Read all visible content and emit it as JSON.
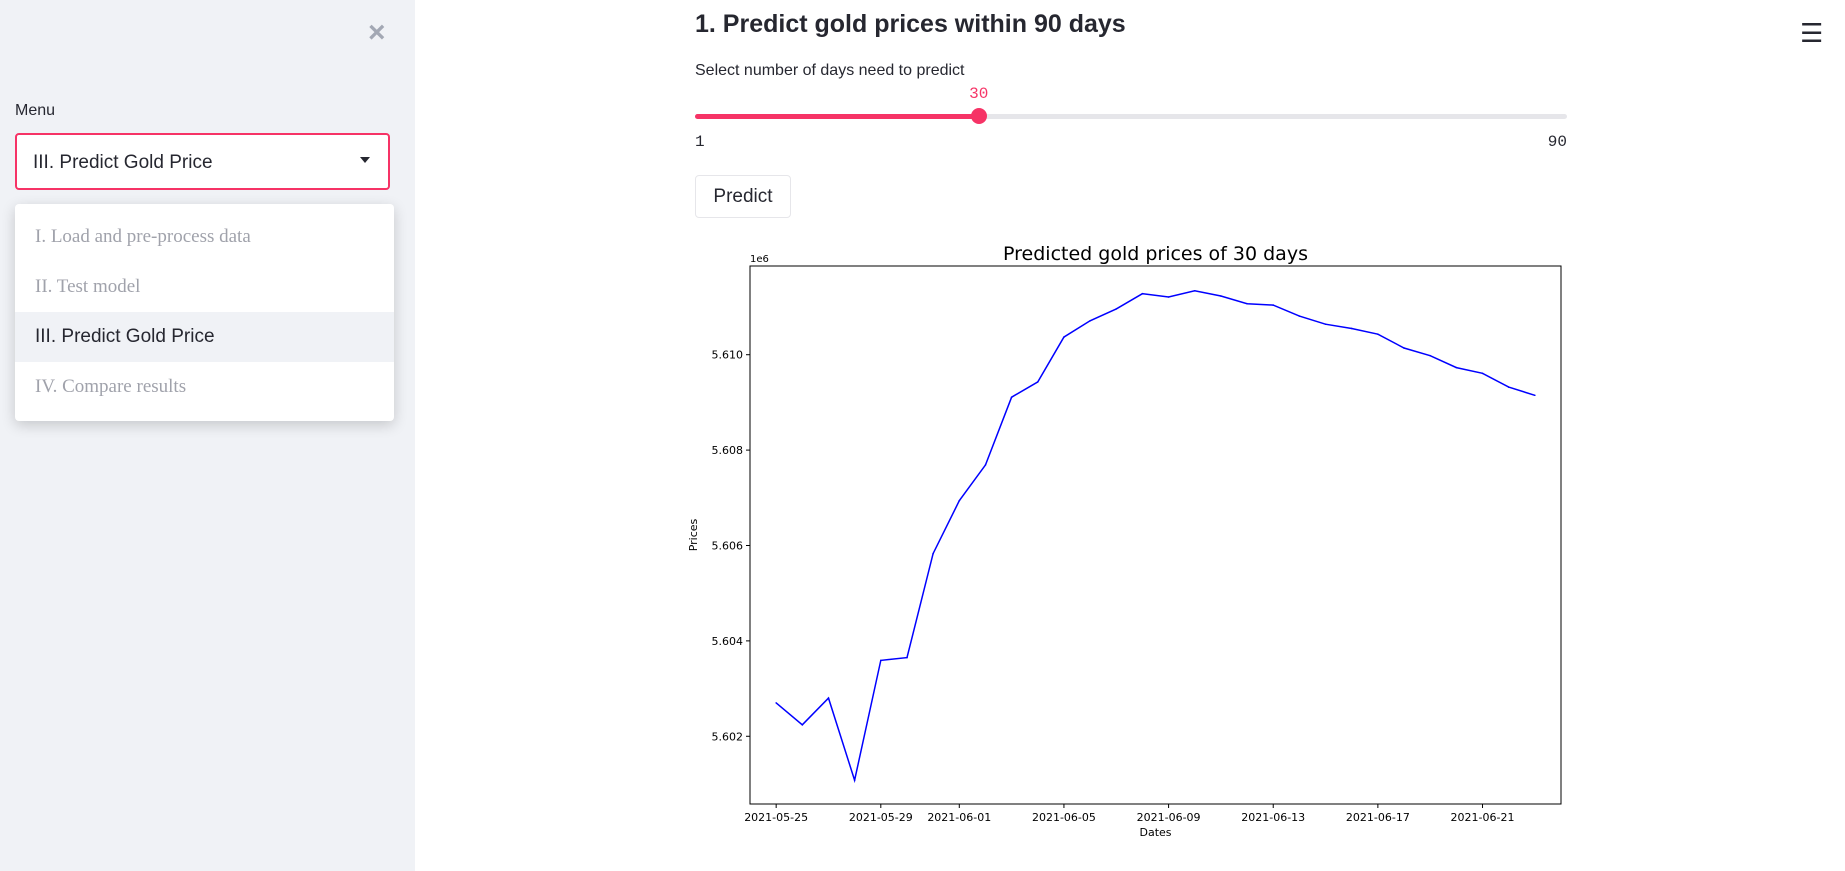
{
  "sidebar": {
    "close_icon": "close-icon",
    "menu_label": "Menu",
    "selected": "III. Predict Gold Price",
    "options": [
      "I. Load and pre-process data",
      "II. Test model",
      "III. Predict Gold Price",
      "IV. Compare results"
    ]
  },
  "main": {
    "title": "1. Predict gold prices within 90 days",
    "slider": {
      "label": "Select number of days need to predict",
      "value": 30,
      "min": 1,
      "max": 90,
      "min_label": "1",
      "max_label": "90",
      "value_label": "30"
    },
    "predict_button": "Predict",
    "accent": "#f63366"
  },
  "menu_icon": "hamburger-icon",
  "chart_data": {
    "type": "line",
    "title": "Predicted gold prices of 30 days",
    "xlabel": "Dates",
    "ylabel": "Prices",
    "offset_label": "1e6",
    "color": "#0000ff",
    "x": [
      "2021-05-25",
      "2021-05-26",
      "2021-05-27",
      "2021-05-28",
      "2021-05-29",
      "2021-05-30",
      "2021-05-31",
      "2021-06-01",
      "2021-06-02",
      "2021-06-03",
      "2021-06-04",
      "2021-06-05",
      "2021-06-06",
      "2021-06-07",
      "2021-06-08",
      "2021-06-09",
      "2021-06-10",
      "2021-06-11",
      "2021-06-12",
      "2021-06-13",
      "2021-06-14",
      "2021-06-15",
      "2021-06-16",
      "2021-06-17",
      "2021-06-18",
      "2021-06-19",
      "2021-06-20",
      "2021-06-21",
      "2021-06-22",
      "2021-06-23"
    ],
    "y": [
      5.6027,
      5.60224,
      5.6028,
      5.60108,
      5.60359,
      5.60365,
      5.60583,
      5.60694,
      5.60769,
      5.60911,
      5.60943,
      5.61037,
      5.61071,
      5.61096,
      5.61128,
      5.61121,
      5.61134,
      5.61123,
      5.61107,
      5.61104,
      5.61081,
      5.61064,
      5.61055,
      5.61043,
      5.61014,
      5.60998,
      5.60973,
      5.60961,
      5.60932,
      5.60915
    ],
    "xticks": [
      "2021-05-25",
      "2021-05-29",
      "2021-06-01",
      "2021-06-05",
      "2021-06-09",
      "2021-06-13",
      "2021-06-17",
      "2021-06-21"
    ],
    "yticks": [
      5.602,
      5.604,
      5.606,
      5.608,
      5.61
    ],
    "ytick_labels": [
      "5.602",
      "5.604",
      "5.606",
      "5.608",
      "5.610"
    ],
    "ylim": [
      5.60058,
      5.61186
    ],
    "xlim": [
      "2021-05-24",
      "2021-06-24"
    ],
    "grid": false
  }
}
